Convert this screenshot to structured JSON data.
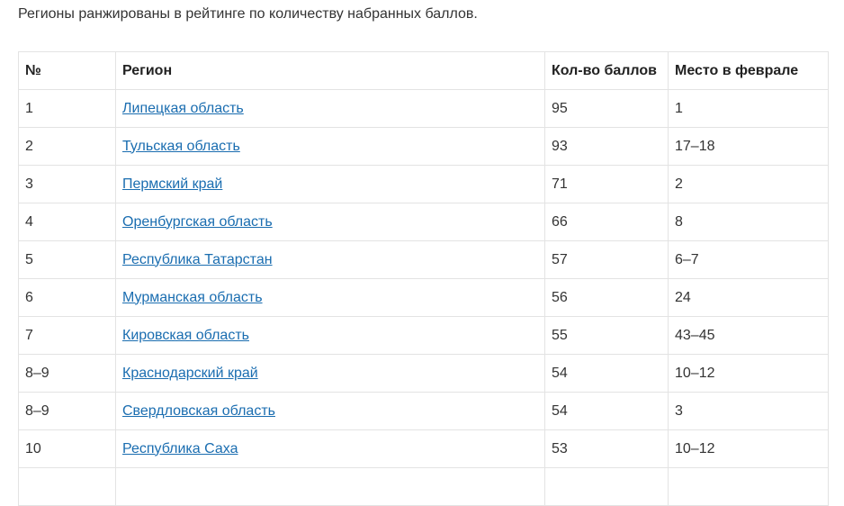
{
  "intro_text": "Регионы ранжированы в рейтинге по количеству набранных баллов.",
  "table": {
    "headers": {
      "num": "№",
      "region": "Регион",
      "points": "Кол-во баллов",
      "place": "Место в феврале"
    },
    "rows": [
      {
        "num": "1",
        "region": "Липецкая область",
        "points": "95",
        "place": "1"
      },
      {
        "num": "2",
        "region": "Тульская область",
        "points": "93",
        "place": "17–18"
      },
      {
        "num": "3",
        "region": "Пермский край",
        "points": "71",
        "place": "2"
      },
      {
        "num": "4",
        "region": "Оренбургская область",
        "points": "66",
        "place": "8"
      },
      {
        "num": "5",
        "region": "Республика Татарстан",
        "points": "57",
        "place": "6–7"
      },
      {
        "num": "6",
        "region": "Мурманская область",
        "points": "56",
        "place": "24"
      },
      {
        "num": "7",
        "region": "Кировская область",
        "points": "55",
        "place": "43–45"
      },
      {
        "num": "8–9",
        "region": "Краснодарский край",
        "points": "54",
        "place": "10–12"
      },
      {
        "num": "8–9",
        "region": "Свердловская область",
        "points": "54",
        "place": "3"
      },
      {
        "num": "10",
        "region": "Республика Саха",
        "points": "53",
        "place": "10–12"
      }
    ]
  },
  "colors": {
    "link": "#1a6db0",
    "border": "#e3e3e3",
    "text": "#333333"
  }
}
